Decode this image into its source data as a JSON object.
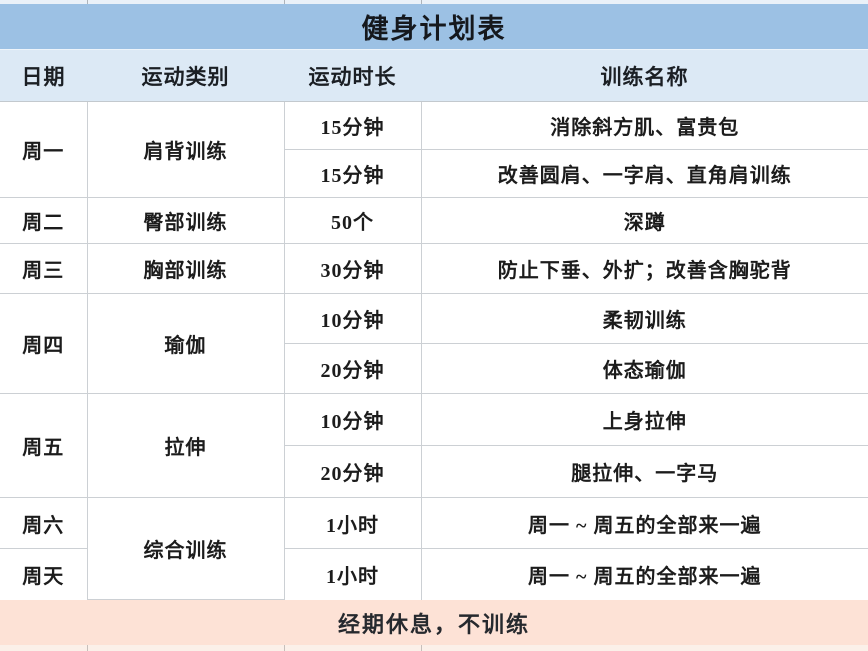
{
  "title": "健身计划表",
  "columns": [
    {
      "label": "日期"
    },
    {
      "label": "运动类别"
    },
    {
      "label": "运动时长"
    },
    {
      "label": "训练名称"
    }
  ],
  "plan": [
    {
      "day": "周一",
      "category": "肩背训练",
      "sessions": [
        {
          "duration": "15分钟",
          "name": "消除斜方肌、富贵包"
        },
        {
          "duration": "15分钟",
          "name": "改善圆肩、一字肩、直角肩训练"
        }
      ]
    },
    {
      "day": "周二",
      "category": "臀部训练",
      "sessions": [
        {
          "duration": "50个",
          "name": "深蹲"
        }
      ]
    },
    {
      "day": "周三",
      "category": "胸部训练",
      "sessions": [
        {
          "duration": "30分钟",
          "name": "防止下垂、外扩；改善含胸驼背"
        }
      ]
    },
    {
      "day": "周四",
      "category": "瑜伽",
      "sessions": [
        {
          "duration": "10分钟",
          "name": "柔韧训练"
        },
        {
          "duration": "20分钟",
          "name": "体态瑜伽"
        }
      ]
    },
    {
      "day": "周五",
      "category": "拉伸",
      "sessions": [
        {
          "duration": "10分钟",
          "name": "上身拉伸"
        },
        {
          "duration": "20分钟",
          "name": "腿拉伸、一字马"
        }
      ]
    },
    {
      "day": "周六",
      "day2": "周天",
      "category": "综合训练",
      "sessions": [
        {
          "duration": "1小时",
          "name": "周一 ~ 周五的全部来一遍"
        },
        {
          "duration": "1小时",
          "name": "周一 ~ 周五的全部来一遍"
        }
      ]
    }
  ],
  "footer_note": "经期休息，不训练",
  "colors": {
    "title_band": "#9cc1e4",
    "header_row": "#dce9f5",
    "body_row": "#ffffff",
    "footer_band": "#fde2d6",
    "grid_line": "#ccd0d4",
    "text": "#1c1c1c"
  }
}
